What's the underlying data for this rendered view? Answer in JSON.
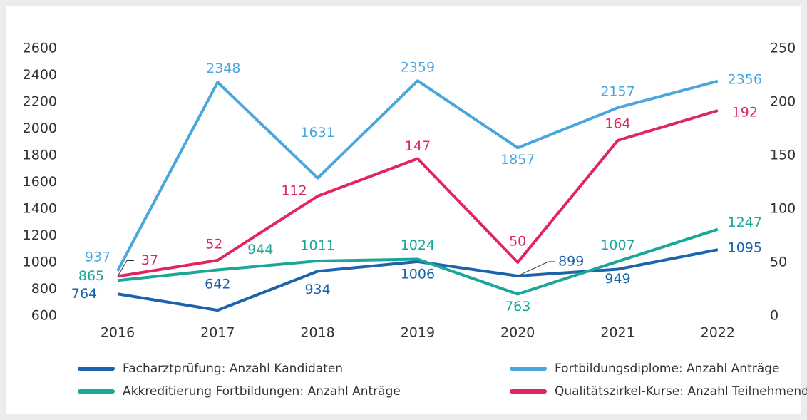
{
  "chart_data": {
    "type": "line",
    "x": [
      "2016",
      "2017",
      "2018",
      "2019",
      "2020",
      "2021",
      "2022"
    ],
    "ylim": [
      600,
      2600
    ],
    "yticks": [
      600,
      800,
      1000,
      1200,
      1400,
      1600,
      1800,
      2000,
      2200,
      2400,
      2600
    ],
    "y2lim": [
      0,
      250
    ],
    "y2ticks": [
      0,
      50,
      100,
      150,
      200,
      250
    ],
    "series": [
      {
        "name": "Facharztprüfung: Anzahl Kandidaten",
        "color": "#1b63ad",
        "values": [
          764,
          642,
          934,
          1006,
          899,
          949,
          1095
        ]
      },
      {
        "name": "Fortbildungsdiplome: Anzahl Anträge",
        "color": "#4ba6de",
        "values": [
          937,
          2348,
          1631,
          2359,
          1857,
          2157,
          2356
        ]
      },
      {
        "name": "Akkreditierung Fortbildungen: Anzahl Anträge",
        "color": "#1aa79a",
        "values": [
          865,
          944,
          1011,
          1024,
          763,
          1007,
          1247
        ]
      },
      {
        "name": "Qualitätszirkel-Kurse: Anzahl Teilnehmende",
        "color": "#e0265f",
        "axis": "y2",
        "values": [
          37,
          52,
          112,
          147,
          50,
          164,
          192
        ]
      }
    ]
  }
}
